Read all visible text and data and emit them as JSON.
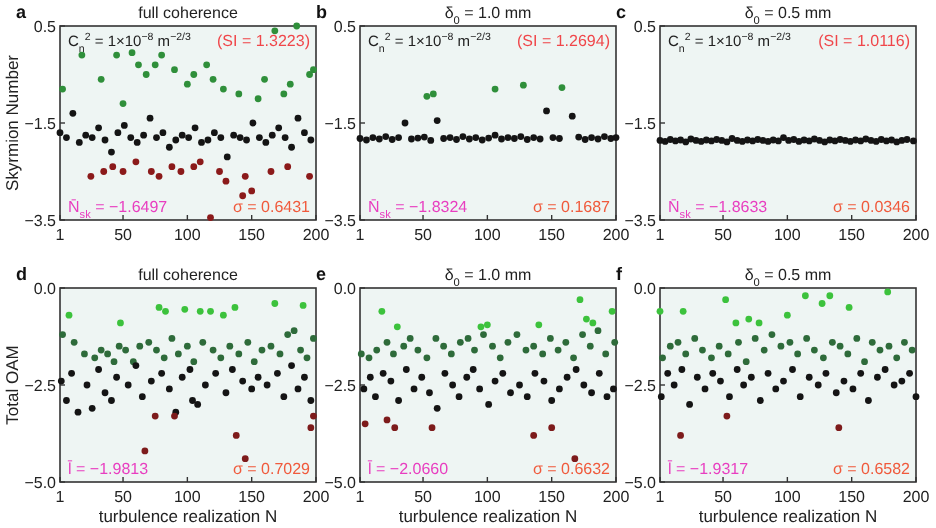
{
  "chart_data": [
    {
      "type": "scatter",
      "title": "full coherence",
      "ylabel": "Skyrmion Number",
      "xlim": [
        1,
        200
      ],
      "xticks": [
        1,
        50,
        100,
        150,
        200
      ],
      "ylim": [
        -3.5,
        0.5
      ],
      "yticks": [
        {
          "value": 0.5,
          "label": "0.5"
        },
        {
          "value": -1.5,
          "label": "−1.5"
        },
        {
          "value": -3.5,
          "label": "−3.5"
        }
      ],
      "marker": "circle",
      "annotations": [
        "a",
        "C$_{n}$$^{2}$ = 1×10$^{−8}$ m$^{−2/3}$",
        "(SI = 1.3223)",
        "N̄$_{sk}$ = −1.6497",
        "σ = 0.6431"
      ],
      "series": [
        {
          "color": "#2f8f3a",
          "x": [
            3,
            18,
            33,
            45,
            50,
            57,
            62,
            68,
            75,
            80,
            90,
            100,
            105,
            115,
            120,
            128,
            140,
            155,
            160,
            168,
            175,
            180,
            185,
            195,
            198
          ],
          "values": [
            -0.8,
            -0.1,
            -0.6,
            -0.1,
            -1.1,
            -0.05,
            -0.3,
            -0.5,
            -0.3,
            -0.1,
            -0.4,
            -0.7,
            -0.5,
            -0.3,
            -0.6,
            -0.8,
            -0.9,
            -1.0,
            -0.6,
            0.4,
            -0.9,
            -0.7,
            0.5,
            -0.5,
            -0.4
          ]
        },
        {
          "color": "#141414",
          "x": [
            1,
            6,
            11,
            16,
            21,
            26,
            31,
            36,
            41,
            46,
            51,
            56,
            61,
            66,
            71,
            76,
            81,
            86,
            91,
            96,
            101,
            106,
            111,
            116,
            121,
            126,
            131,
            136,
            141,
            146,
            151,
            156,
            161,
            166,
            171,
            176,
            181,
            186,
            191,
            196
          ],
          "values": [
            -1.7,
            -1.8,
            -1.3,
            -1.9,
            -1.75,
            -1.8,
            -1.6,
            -1.85,
            -2.1,
            -1.7,
            -1.55,
            -1.8,
            -1.9,
            -1.75,
            -1.4,
            -1.8,
            -1.7,
            -2.0,
            -1.85,
            -1.75,
            -1.8,
            -1.6,
            -1.9,
            -1.85,
            -1.7,
            -1.8,
            -2.2,
            -1.75,
            -1.8,
            -1.85,
            -1.5,
            -1.8,
            -1.9,
            -1.75,
            -1.6,
            -1.8,
            -2.0,
            -1.4,
            -1.7,
            -1.85
          ]
        },
        {
          "color": "#8b1a1a",
          "x": [
            25,
            35,
            42,
            50,
            60,
            72,
            78,
            88,
            95,
            105,
            110,
            118,
            125,
            130,
            145,
            150,
            143,
            165,
            178,
            195
          ],
          "values": [
            -2.6,
            -2.5,
            -2.4,
            -2.5,
            -2.3,
            -2.5,
            -2.6,
            -2.4,
            -2.5,
            -2.4,
            -2.3,
            -3.45,
            -2.5,
            -2.7,
            -2.6,
            -2.9,
            -3.0,
            -2.5,
            -2.4,
            -2.6
          ]
        }
      ]
    },
    {
      "type": "scatter",
      "title": "δ$_{0}$ = 1.0 mm",
      "xlim": [
        1,
        200
      ],
      "xticks": [
        1,
        50,
        100,
        150,
        200
      ],
      "ylim": [
        -3.5,
        0.5
      ],
      "yticks": [
        {
          "value": 0.5,
          "label": "0.5"
        },
        {
          "value": -1.5,
          "label": "−1.5"
        },
        {
          "value": -3.5,
          "label": "−3.5"
        }
      ],
      "marker": "circle",
      "annotations": [
        "b",
        "C$_{n}$$^{2}$ = 1×10$^{−8}$ m$^{−2/3}$",
        "(SI = 1.2694)",
        "N̄$_{sk}$ = −1.8324",
        "σ = 0.1687"
      ],
      "series": [
        {
          "color": "#2f8f3a",
          "x": [
            53,
            58,
            106,
            128,
            158
          ],
          "values": [
            -0.95,
            -0.9,
            -0.8,
            -0.72,
            -0.77
          ]
        },
        {
          "color": "#141414",
          "x": [
            1,
            6,
            11,
            16,
            21,
            26,
            31,
            36,
            41,
            46,
            51,
            56,
            61,
            66,
            71,
            76,
            81,
            86,
            91,
            96,
            101,
            106,
            111,
            116,
            121,
            126,
            131,
            136,
            141,
            146,
            151,
            156,
            166,
            171,
            176,
            181,
            186,
            191,
            196,
            200
          ],
          "values": [
            -1.82,
            -1.85,
            -1.8,
            -1.83,
            -1.78,
            -1.84,
            -1.8,
            -1.5,
            -1.83,
            -1.81,
            -1.79,
            -1.86,
            -1.45,
            -1.82,
            -1.8,
            -1.84,
            -1.78,
            -1.83,
            -1.8,
            -1.85,
            -1.81,
            -1.75,
            -1.83,
            -1.8,
            -1.82,
            -1.78,
            -1.84,
            -1.8,
            -1.83,
            -1.25,
            -1.8,
            -1.82,
            -1.36,
            -1.79,
            -1.84,
            -1.8,
            -1.83,
            -1.78,
            -1.82,
            -1.8
          ]
        }
      ]
    },
    {
      "type": "scatter",
      "title": "δ$_{0}$ = 0.5 mm",
      "xlim": [
        1,
        200
      ],
      "xticks": [
        1,
        50,
        100,
        150,
        200
      ],
      "ylim": [
        -3.5,
        0.5
      ],
      "yticks": [
        {
          "value": 0.5,
          "label": "0.5"
        },
        {
          "value": -1.5,
          "label": "−1.5"
        },
        {
          "value": -3.5,
          "label": "−3.5"
        }
      ],
      "marker": "circle",
      "annotations": [
        "c",
        "C$_{n}$$^{2}$ = 1×10$^{−8}$ m$^{−2/3}$",
        "(SI = 1.0116)",
        "N̄$_{sk}$ = −1.8633",
        "σ = 0.0346"
      ],
      "series": [
        {
          "color": "#141414",
          "x": [
            1,
            5,
            9,
            13,
            17,
            21,
            25,
            29,
            33,
            37,
            41,
            45,
            49,
            53,
            57,
            61,
            65,
            69,
            73,
            77,
            81,
            85,
            89,
            93,
            97,
            101,
            105,
            109,
            113,
            117,
            121,
            125,
            129,
            133,
            137,
            141,
            145,
            149,
            153,
            157,
            161,
            165,
            169,
            173,
            177,
            181,
            185,
            189,
            193,
            198
          ],
          "values": [
            -1.86,
            -1.88,
            -1.84,
            -1.87,
            -1.85,
            -1.89,
            -1.83,
            -1.86,
            -1.88,
            -1.85,
            -1.87,
            -1.84,
            -1.86,
            -1.89,
            -1.82,
            -1.86,
            -1.88,
            -1.85,
            -1.87,
            -1.84,
            -1.86,
            -1.88,
            -1.85,
            -1.87,
            -1.8,
            -1.86,
            -1.84,
            -1.88,
            -1.85,
            -1.87,
            -1.83,
            -1.86,
            -1.89,
            -1.85,
            -1.87,
            -1.84,
            -1.86,
            -1.88,
            -1.85,
            -1.87,
            -1.83,
            -1.86,
            -1.88,
            -1.84,
            -1.87,
            -1.85,
            -1.89,
            -1.86,
            -1.84,
            -1.87
          ]
        }
      ]
    },
    {
      "type": "scatter",
      "title": "full coherence",
      "xlabel": "turbulence realization N",
      "ylabel": "Total OAM",
      "xlim": [
        1,
        200
      ],
      "xticks": [
        1,
        50,
        100,
        150,
        200
      ],
      "ylim": [
        -5,
        0
      ],
      "yticks": [
        {
          "value": 0,
          "label": "0.0"
        },
        {
          "value": -2.5,
          "label": "−2.5"
        },
        {
          "value": -5,
          "label": "−5.0"
        }
      ],
      "marker": "circle",
      "annotations": [
        "d",
        "l̄ = −1.9813",
        "σ = 0.7029"
      ],
      "series": [
        {
          "color": "#3cc23c",
          "x": [
            8,
            48,
            78,
            83,
            98,
            110,
            118,
            128,
            137,
            168,
            190
          ],
          "values": [
            -0.7,
            -0.9,
            -0.5,
            -0.6,
            -0.55,
            -0.6,
            -0.6,
            -0.7,
            -0.5,
            -0.4,
            -0.45
          ]
        },
        {
          "color": "#2e6b3a",
          "x": [
            3,
            12,
            20,
            28,
            33,
            38,
            43,
            47,
            52,
            58,
            63,
            70,
            76,
            82,
            88,
            93,
            100,
            105,
            112,
            120,
            126,
            133,
            140,
            147,
            152,
            158,
            165,
            172,
            178,
            183,
            188,
            193,
            198
          ],
          "values": [
            -1.2,
            -1.4,
            -1.7,
            -1.8,
            -1.6,
            -1.7,
            -1.9,
            -1.5,
            -1.6,
            -1.9,
            -1.5,
            -1.4,
            -1.6,
            -1.8,
            -1.3,
            -1.7,
            -1.5,
            -1.9,
            -1.4,
            -1.6,
            -1.8,
            -1.5,
            -1.7,
            -1.4,
            -1.9,
            -1.6,
            -1.5,
            -1.7,
            -1.2,
            -1.1,
            -1.6,
            -1.8,
            -1.3
          ]
        },
        {
          "color": "#141414",
          "x": [
            2,
            6,
            10,
            15,
            22,
            26,
            31,
            36,
            41,
            45,
            54,
            60,
            65,
            72,
            80,
            86,
            91,
            96,
            102,
            104,
            108,
            114,
            122,
            130,
            135,
            143,
            150,
            155,
            162,
            170,
            175,
            181,
            186,
            191,
            196
          ],
          "values": [
            -2.4,
            -2.9,
            -2.2,
            -3.2,
            -2.5,
            -3.1,
            -2.1,
            -2.7,
            -2.9,
            -2.3,
            -2.5,
            -2.0,
            -2.8,
            -2.4,
            -2.2,
            -2.6,
            -3.2,
            -2.3,
            -2.1,
            -2.9,
            -3.0,
            -2.5,
            -2.2,
            -2.7,
            -2.1,
            -2.4,
            -2.6,
            -2.3,
            -2.5,
            -2.2,
            -2.8,
            -2.0,
            -2.6,
            -2.3,
            -2.9
          ]
        },
        {
          "color": "#7d1b1b",
          "x": [
            67,
            75,
            90,
            138,
            145,
            196,
            198
          ],
          "values": [
            -4.2,
            -3.3,
            -3.3,
            -3.8,
            -4.4,
            -3.6,
            -3.3
          ]
        }
      ]
    },
    {
      "type": "scatter",
      "title": "δ$_{0}$ = 1.0 mm",
      "xlabel": "turbulence realization N",
      "xlim": [
        1,
        200
      ],
      "xticks": [
        1,
        50,
        100,
        150,
        200
      ],
      "ylim": [
        -5,
        0
      ],
      "yticks": [
        {
          "value": 0,
          "label": "0.0"
        },
        {
          "value": -2.5,
          "label": "−2.5"
        },
        {
          "value": -5,
          "label": "−5.0"
        }
      ],
      "marker": "circle",
      "annotations": [
        "e",
        "l̄ = −2.0660",
        "σ = 0.6632"
      ],
      "series": [
        {
          "color": "#3cc23c",
          "x": [
            18,
            30,
            95,
            100,
            140,
            172,
            177,
            182,
            197
          ],
          "values": [
            -0.6,
            -1.0,
            -1.0,
            -0.95,
            -0.95,
            -0.3,
            -0.8,
            -0.9,
            -0.6
          ]
        },
        {
          "color": "#2e6b3a",
          "x": [
            2,
            8,
            14,
            22,
            27,
            35,
            40,
            46,
            53,
            60,
            66,
            72,
            79,
            85,
            90,
            97,
            104,
            110,
            116,
            123,
            130,
            136,
            143,
            149,
            155,
            161,
            167,
            174,
            180,
            186,
            192,
            199
          ],
          "values": [
            -1.7,
            -1.8,
            -1.6,
            -1.4,
            -1.7,
            -1.5,
            -1.3,
            -1.6,
            -1.8,
            -1.3,
            -1.5,
            -1.7,
            -1.4,
            -1.3,
            -1.6,
            -1.2,
            -1.5,
            -1.8,
            -1.4,
            -1.2,
            -1.6,
            -1.5,
            -1.7,
            -1.3,
            -1.6,
            -1.4,
            -1.8,
            -1.2,
            -1.5,
            -1.1,
            -1.7,
            -1.4
          ]
        },
        {
          "color": "#141414",
          "x": [
            4,
            9,
            13,
            19,
            25,
            31,
            37,
            43,
            49,
            55,
            61,
            67,
            73,
            78,
            84,
            89,
            94,
            101,
            106,
            112,
            118,
            125,
            131,
            137,
            144,
            150,
            156,
            162,
            169,
            175,
            181,
            187,
            193,
            198
          ],
          "values": [
            -2.6,
            -2.3,
            -2.8,
            -2.2,
            -2.4,
            -2.9,
            -2.1,
            -2.6,
            -2.3,
            -2.7,
            -3.1,
            -2.2,
            -2.5,
            -2.8,
            -2.3,
            -2.1,
            -2.6,
            -3.0,
            -2.4,
            -2.2,
            -2.7,
            -2.5,
            -2.8,
            -2.2,
            -2.4,
            -2.9,
            -2.6,
            -2.3,
            -2.1,
            -2.5,
            -2.7,
            -2.2,
            -2.8,
            -2.6
          ]
        },
        {
          "color": "#7d1b1b",
          "x": [
            5,
            22,
            28,
            57,
            136,
            150,
            168
          ],
          "values": [
            -3.5,
            -3.4,
            -3.6,
            -3.6,
            -3.8,
            -3.6,
            -4.4
          ]
        }
      ]
    },
    {
      "type": "scatter",
      "title": "δ$_{0}$ = 0.5 mm",
      "xlabel": "turbulence realization N",
      "xlim": [
        1,
        200
      ],
      "xticks": [
        1,
        50,
        100,
        150,
        200
      ],
      "ylim": [
        -5,
        0
      ],
      "yticks": [
        {
          "value": 0,
          "label": "0.0"
        },
        {
          "value": -2.5,
          "label": "−2.5"
        },
        {
          "value": -5,
          "label": "−5.0"
        }
      ],
      "marker": "circle",
      "annotations": [
        "f",
        "l̄ = −1.9317",
        "σ = 0.6582"
      ],
      "series": [
        {
          "color": "#3cc23c",
          "x": [
            1,
            19,
            52,
            60,
            70,
            78,
            100,
            114,
            127,
            133,
            148,
            178
          ],
          "values": [
            -0.6,
            -0.6,
            -0.3,
            -0.9,
            -0.8,
            -0.9,
            -0.7,
            -0.2,
            -0.4,
            -0.2,
            -0.5,
            -0.1
          ]
        },
        {
          "color": "#2e6b3a",
          "x": [
            3,
            9,
            15,
            21,
            28,
            34,
            41,
            47,
            54,
            62,
            68,
            75,
            82,
            88,
            95,
            102,
            108,
            115,
            121,
            128,
            135,
            141,
            147,
            154,
            160,
            166,
            172,
            179,
            185,
            191,
            197
          ],
          "values": [
            -1.8,
            -1.5,
            -1.4,
            -1.7,
            -1.3,
            -1.6,
            -1.8,
            -1.5,
            -1.7,
            -1.4,
            -1.9,
            -1.3,
            -1.6,
            -1.2,
            -1.5,
            -1.4,
            -1.7,
            -1.3,
            -1.6,
            -1.8,
            -1.4,
            -1.5,
            -1.7,
            -1.3,
            -1.9,
            -1.4,
            -1.6,
            -1.5,
            -1.8,
            -1.4,
            -1.6
          ]
        },
        {
          "color": "#141414",
          "x": [
            2,
            7,
            12,
            18,
            24,
            30,
            36,
            42,
            48,
            55,
            61,
            66,
            72,
            79,
            85,
            91,
            97,
            104,
            110,
            117,
            124,
            130,
            138,
            144,
            151,
            157,
            163,
            170,
            176,
            183,
            189,
            195,
            200
          ],
          "values": [
            -2.8,
            -2.2,
            -2.5,
            -2.1,
            -3.0,
            -2.3,
            -2.6,
            -2.2,
            -2.4,
            -2.8,
            -2.1,
            -2.5,
            -2.3,
            -2.9,
            -2.2,
            -2.6,
            -2.4,
            -2.1,
            -2.8,
            -2.3,
            -2.5,
            -2.2,
            -2.7,
            -2.4,
            -2.6,
            -2.2,
            -2.9,
            -2.3,
            -2.1,
            -2.5,
            -2.4,
            -2.2,
            -2.8
          ]
        },
        {
          "color": "#7d1b1b",
          "x": [
            17,
            53,
            140
          ],
          "values": [
            -3.8,
            -3.3,
            -3.6
          ]
        }
      ]
    }
  ]
}
